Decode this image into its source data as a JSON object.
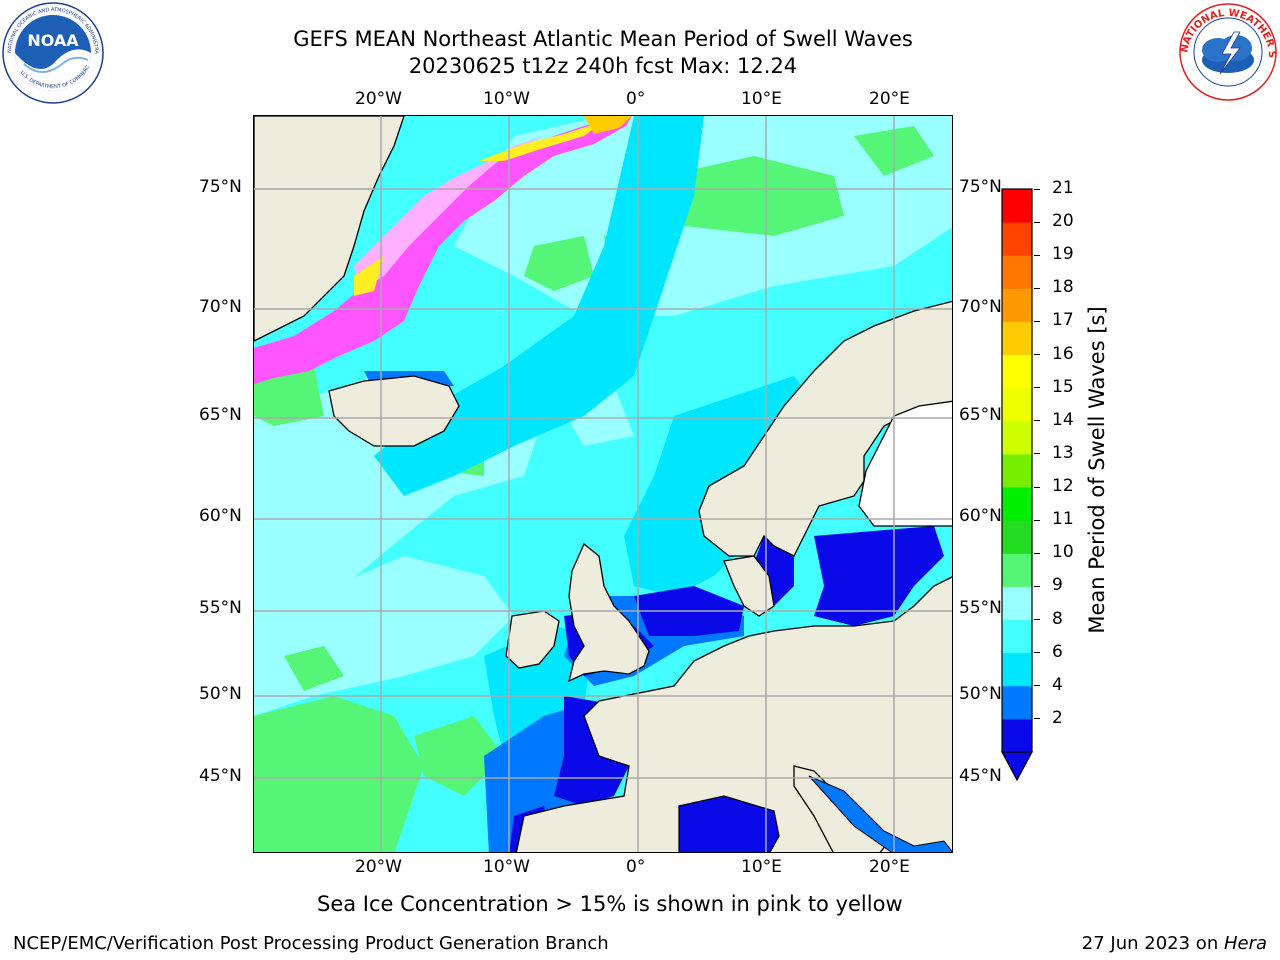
{
  "title": {
    "line1": "GEFS MEAN Northeast Atlantic Mean Period of Swell Waves",
    "line2": "20230625 t12z 240h fcst   Max: 12.24"
  },
  "logos": {
    "left": {
      "name": "noaa-logo",
      "text": "NOAA",
      "ring_text": "NATIONAL OCEANIC AND ATMOSPHERIC ADMINISTRATION · U.S. DEPARTMENT OF COMMERCE"
    },
    "right": {
      "name": "nws-logo",
      "ring_text": "NATIONAL WEATHER SERVICE"
    }
  },
  "map": {
    "lon_ticks_top": [
      "20°W",
      "10°W",
      "0°",
      "10°E",
      "20°E"
    ],
    "lon_ticks_bottom": [
      "20°W",
      "10°W",
      "0°",
      "10°E",
      "20°E"
    ],
    "lat_ticks_left": [
      "75°N",
      "70°N",
      "65°N",
      "60°N",
      "55°N",
      "50°N",
      "45°N"
    ],
    "lat_ticks_right": [
      "75°N",
      "70°N",
      "65°N",
      "60°N",
      "55°N",
      "50°N",
      "45°N"
    ],
    "land_color": "#eeecdc",
    "ice_color": "#ffffff",
    "grid": true
  },
  "colorbar": {
    "label": "Mean Period of Swell Waves [s]",
    "ticks": [
      "21",
      "20",
      "19",
      "18",
      "17",
      "16",
      "15",
      "14",
      "13",
      "12",
      "11",
      "10",
      "9",
      "8",
      "6",
      "4",
      "2"
    ],
    "colors_bottom_to_top": [
      "#0a0ae8",
      "#0078ff",
      "#00e6ff",
      "#44ffff",
      "#99ffff",
      "#55f577",
      "#22dd22",
      "#00ee00",
      "#77ee00",
      "#ccff00",
      "#eeff00",
      "#ffff00",
      "#ffcc00",
      "#ff9900",
      "#ff7700",
      "#ff4400",
      "#ff0000"
    ],
    "extend": "min"
  },
  "caption": "Sea Ice Concentration > 15% is shown in pink to yellow",
  "footer": {
    "left": "NCEP/EMC/Verification Post Processing Product Generation Branch",
    "right_prefix": "27 Jun 2023 on ",
    "right_machine": "Hera"
  },
  "colors": {
    "sea_ice_pink": "#ff55ff",
    "sea_ice_yellow": "#ffee22",
    "very_low_period": "#0000ee"
  }
}
